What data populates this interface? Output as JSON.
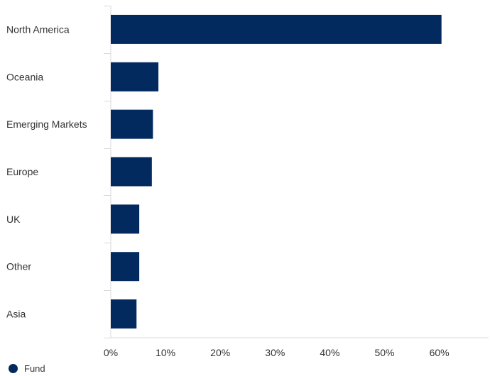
{
  "chart_data": {
    "type": "bar",
    "orientation": "horizontal",
    "categories": [
      "North America",
      "Oceania",
      "Emerging Markets",
      "Europe",
      "UK",
      "Other",
      "Asia"
    ],
    "series": [
      {
        "name": "Fund",
        "values": [
          60.4,
          8.7,
          7.7,
          7.5,
          5.2,
          5.2,
          4.7
        ]
      }
    ],
    "xlim": [
      0,
      69
    ],
    "xticks": [
      0,
      10,
      20,
      30,
      40,
      50,
      60
    ],
    "xtick_labels": [
      "0%",
      "10%",
      "20%",
      "30%",
      "40%",
      "50%",
      "60%"
    ],
    "grid": false,
    "legend": {
      "position": "bottom-left"
    },
    "colors": {
      "bar": "#022a5e",
      "axis": "#d9d9d9",
      "text": "#333333"
    }
  }
}
